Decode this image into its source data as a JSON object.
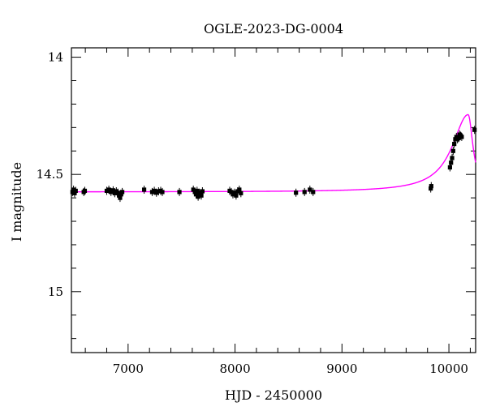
{
  "chart_data": {
    "type": "scatter",
    "title": "OGLE-2023-DG-0004",
    "xlabel": "HJD - 2450000",
    "ylabel": "I magnitude",
    "xlim": [
      6470,
      10250
    ],
    "ylim": [
      15.26,
      13.96
    ],
    "y_inverted": true,
    "x_major_ticks": [
      7000,
      8000,
      9000,
      10000
    ],
    "x_minor_step": 200,
    "y_major_ticks": [
      14,
      14.5,
      15
    ],
    "y_minor_step": 0.1,
    "x_tick_labels": [
      "7000",
      "8000",
      "9000",
      "10000"
    ],
    "y_tick_labels": [
      "14",
      "14.5",
      "15"
    ],
    "grid": false,
    "legend": "none",
    "colors": {
      "model": "#ff00ff",
      "points": "#000000"
    },
    "series": [
      {
        "kind": "observations",
        "points": [
          [
            6480,
            14.575
          ],
          [
            6490,
            14.565
          ],
          [
            6500,
            14.58
          ],
          [
            6510,
            14.57
          ],
          [
            6585,
            14.575
          ],
          [
            6595,
            14.57
          ],
          [
            6800,
            14.57
          ],
          [
            6820,
            14.565
          ],
          [
            6840,
            14.575
          ],
          [
            6860,
            14.568
          ],
          [
            6875,
            14.58
          ],
          [
            6890,
            14.572
          ],
          [
            6905,
            14.578
          ],
          [
            6915,
            14.59
          ],
          [
            6925,
            14.6
          ],
          [
            6935,
            14.585
          ],
          [
            6945,
            14.575
          ],
          [
            7150,
            14.565
          ],
          [
            7225,
            14.575
          ],
          [
            7245,
            14.57
          ],
          [
            7265,
            14.578
          ],
          [
            7285,
            14.572
          ],
          [
            7305,
            14.57
          ],
          [
            7320,
            14.575
          ],
          [
            7480,
            14.575
          ],
          [
            7610,
            14.565
          ],
          [
            7625,
            14.575
          ],
          [
            7635,
            14.585
          ],
          [
            7645,
            14.57
          ],
          [
            7655,
            14.595
          ],
          [
            7665,
            14.578
          ],
          [
            7675,
            14.58
          ],
          [
            7685,
            14.59
          ],
          [
            7695,
            14.572
          ],
          [
            7950,
            14.57
          ],
          [
            7965,
            14.575
          ],
          [
            7980,
            14.585
          ],
          [
            7995,
            14.578
          ],
          [
            8010,
            14.59
          ],
          [
            8025,
            14.572
          ],
          [
            8040,
            14.565
          ],
          [
            8055,
            14.58
          ],
          [
            8570,
            14.578
          ],
          [
            8650,
            14.575
          ],
          [
            8700,
            14.565
          ],
          [
            8730,
            14.575
          ],
          [
            9830,
            14.56
          ],
          [
            9835,
            14.55
          ],
          [
            10010,
            14.47
          ],
          [
            10020,
            14.45
          ],
          [
            10030,
            14.43
          ],
          [
            10040,
            14.4
          ],
          [
            10050,
            14.37
          ],
          [
            10060,
            14.35
          ],
          [
            10070,
            14.34
          ],
          [
            10080,
            14.35
          ],
          [
            10090,
            14.345
          ],
          [
            10100,
            14.33
          ],
          [
            10110,
            14.335
          ],
          [
            10120,
            14.34
          ],
          [
            10240,
            14.31
          ]
        ]
      },
      {
        "kind": "model-curve",
        "baseline": 14.575,
        "peak_x": 10180,
        "peak_y": 14.245,
        "rise_scale": 180,
        "fall_scale": 55,
        "x_start": 6470,
        "x_end": 10250
      }
    ]
  }
}
